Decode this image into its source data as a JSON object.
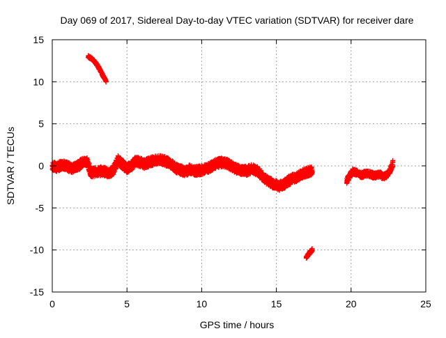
{
  "chart_data": {
    "type": "scatter",
    "title": "Day 069 of 2017, Sidereal Day-to-day VTEC variation (SDTVAR) for receiver dare",
    "xlabel": "GPS time / hours",
    "ylabel": "SDTVAR / TECUs",
    "xlim": [
      0,
      25
    ],
    "ylim": [
      -15,
      15
    ],
    "xticks": [
      0,
      5,
      10,
      15,
      20,
      25
    ],
    "yticks": [
      -15,
      -10,
      -5,
      0,
      5,
      10,
      15
    ],
    "grid": true,
    "series": [
      {
        "name": "SDTVAR",
        "color": "#ff0000",
        "marker": "plus",
        "segments": [
          {
            "x": [
              0.0,
              0.3,
              0.7,
              1.0,
              1.4,
              1.8,
              2.0,
              2.3,
              2.6,
              3.0,
              3.4,
              3.8,
              4.1,
              4.4,
              4.8,
              5.0,
              5.3,
              5.6,
              5.9,
              6.2,
              6.5,
              6.8,
              7.2,
              7.5,
              7.9,
              8.3,
              8.6,
              8.9,
              9.2,
              9.6,
              10.0,
              10.4,
              10.7,
              11.0,
              11.4,
              11.8,
              12.2,
              12.6,
              13.0,
              13.4,
              13.8,
              14.2,
              14.6,
              14.9,
              15.2,
              15.5,
              15.8,
              16.1,
              16.4,
              16.7,
              17.0,
              17.3,
              17.4
            ],
            "y": [
              0.0,
              -0.2,
              0.2,
              -0.1,
              -0.3,
              0.1,
              0.4,
              0.6,
              -0.8,
              -0.7,
              -0.6,
              -0.9,
              -0.5,
              0.7,
              0.0,
              -0.3,
              0.0,
              0.6,
              0.4,
              0.2,
              0.5,
              0.6,
              0.7,
              0.6,
              0.3,
              -0.3,
              -0.5,
              -0.7,
              -0.4,
              -0.6,
              -0.5,
              -0.3,
              0.0,
              0.3,
              0.4,
              0.2,
              -0.3,
              -0.5,
              -0.6,
              -0.3,
              -0.7,
              -1.5,
              -2.0,
              -2.2,
              -2.4,
              -2.2,
              -1.8,
              -1.5,
              -1.3,
              -1.0,
              -0.8,
              -0.6,
              -0.7
            ],
            "band": 0.55
          },
          {
            "x": [
              19.7,
              19.9,
              20.1,
              20.4,
              20.7,
              21.0,
              21.3,
              21.6,
              21.9,
              22.2,
              22.5,
              22.8
            ],
            "y": [
              -1.8,
              -1.2,
              -0.7,
              -0.8,
              -1.1,
              -0.9,
              -1.0,
              -1.2,
              -1.0,
              -1.3,
              -0.9,
              0.3
            ],
            "band": 0.35
          },
          {
            "x": [
              2.4,
              2.6,
              2.8,
              3.0,
              3.2,
              3.4,
              3.6
            ],
            "y": [
              13.0,
              12.8,
              12.5,
              12.0,
              11.4,
              10.7,
              10.1
            ],
            "band": 0.15
          },
          {
            "x": [
              17.0,
              17.1,
              17.2,
              17.3,
              17.4
            ],
            "y": [
              -10.9,
              -10.6,
              -10.4,
              -10.2,
              -10.0
            ],
            "band": 0.2
          }
        ]
      }
    ]
  }
}
